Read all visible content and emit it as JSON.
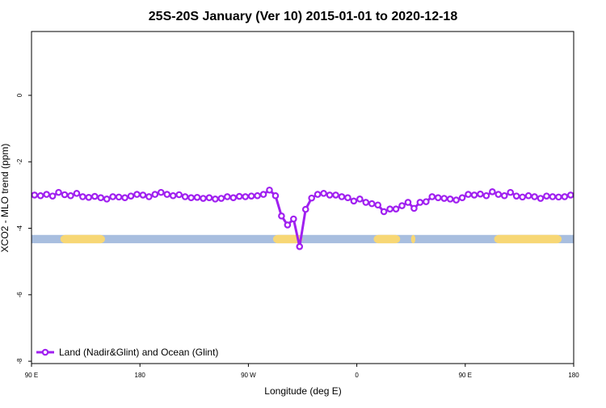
{
  "chart_data": {
    "type": "line",
    "title": "25S-20S January (Ver 10)   2015-01-01 to 2020-12-18",
    "x_label": "Longitude (deg E)",
    "y_label": "XCO2 - MLO trend (ppm)",
    "xlim": [
      90,
      540
    ],
    "ylim": [
      -8.07,
      1.92
    ],
    "xticks": [
      {
        "value": 90,
        "label": "90 E"
      },
      180,
      {
        "value": 270,
        "label": "90 W"
      },
      {
        "value": 360,
        "label": "0"
      },
      {
        "value": 450,
        "label": "90 E"
      },
      {
        "value": 540,
        "label": "180"
      }
    ],
    "yticks": [
      0,
      -2,
      -4,
      -6,
      -8
    ],
    "surface_band": {
      "ylim": [
        -4.2,
        -4.45
      ],
      "ocean_color": "#a8bedf",
      "land_color": "#f7d775",
      "land_ranges": [
        [
          114,
          151
        ],
        [
          290.5,
          315
        ],
        [
          374,
          396
        ],
        [
          405,
          408.6
        ],
        [
          474,
          530
        ]
      ]
    },
    "legend": "bottom-left",
    "x": [
      92.5,
      97.5,
      102.5,
      107.5,
      112.5,
      117.5,
      122.5,
      127.5,
      132.5,
      137.5,
      142.5,
      147.5,
      152.5,
      157.5,
      162.5,
      167.5,
      172.5,
      177.5,
      182.5,
      187.5,
      192.5,
      197.5,
      202.5,
      207.5,
      212.5,
      217.5,
      222.5,
      227.5,
      232.5,
      237.5,
      242.5,
      247.5,
      252.5,
      257.5,
      262.5,
      267.5,
      272.5,
      277.5,
      282.5,
      287.5,
      292.5,
      297.5,
      302.5,
      307.5,
      312.5,
      317.5,
      322.5,
      327.5,
      332.5,
      337.5,
      342.5,
      347.5,
      352.5,
      357.5,
      362.5,
      367.5,
      372.5,
      377.5,
      382.5,
      387.5,
      392.5,
      397.5,
      402.5,
      407.5,
      412.5,
      417.5,
      422.5,
      427.5,
      432.5,
      437.5,
      442.5,
      447.5,
      452.5,
      457.5,
      462.5,
      467.5,
      472.5,
      477.5,
      482.5,
      487.5,
      492.5,
      497.5,
      502.5,
      507.5,
      512.5,
      517.5,
      522.5,
      527.5,
      532.5,
      537.5
    ],
    "series": [
      {
        "name": "Land (Nadir&Glint) and Ocean (Glint)",
        "color": "#a020f0",
        "values": [
          -3.0,
          -3.02,
          -2.98,
          -3.03,
          -2.92,
          -2.99,
          -3.02,
          -2.95,
          -3.05,
          -3.07,
          -3.04,
          -3.08,
          -3.12,
          -3.05,
          -3.06,
          -3.08,
          -3.03,
          -2.98,
          -3.0,
          -3.05,
          -2.98,
          -2.92,
          -2.98,
          -3.02,
          -2.99,
          -3.05,
          -3.08,
          -3.07,
          -3.1,
          -3.08,
          -3.12,
          -3.1,
          -3.05,
          -3.08,
          -3.04,
          -3.05,
          -3.03,
          -3.02,
          -2.98,
          -2.85,
          -3.02,
          -3.63,
          -3.9,
          -3.72,
          -4.55,
          -3.43,
          -3.09,
          -2.98,
          -2.95,
          -3.0,
          -3.0,
          -3.05,
          -3.08,
          -3.18,
          -3.12,
          -3.22,
          -3.26,
          -3.3,
          -3.5,
          -3.42,
          -3.42,
          -3.32,
          -3.22,
          -3.4,
          -3.22,
          -3.2,
          -3.05,
          -3.08,
          -3.1,
          -3.12,
          -3.15,
          -3.08,
          -2.98,
          -3.0,
          -2.97,
          -3.02,
          -2.9,
          -2.98,
          -3.02,
          -2.92,
          -3.03,
          -3.06,
          -3.02,
          -3.05,
          -3.1,
          -3.03,
          -3.05,
          -3.06,
          -3.05,
          -3.0
        ]
      }
    ]
  }
}
